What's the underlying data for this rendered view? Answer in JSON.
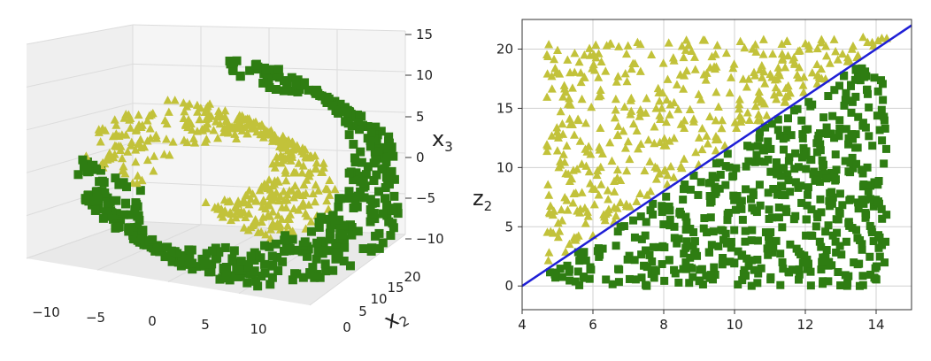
{
  "colors": {
    "class_0": "#2e7d12",
    "class_1": "#c2c23a",
    "boundary": "#1f1fd6",
    "grid": "#d0d0d0",
    "pane": "#efefef"
  },
  "chart_data": [
    {
      "type": "scatter",
      "projection": "3d",
      "markers": {
        "class_0": "square",
        "class_1": "triangle"
      },
      "axes": {
        "x": {
          "label": "",
          "ticks": [
            "−10",
            "−5",
            "0",
            "5",
            "10"
          ],
          "range": [
            -12,
            12
          ]
        },
        "y": {
          "label_base": "x",
          "label_sub": "2",
          "ticks": [
            "0",
            "5",
            "10",
            "15",
            "20"
          ],
          "range": [
            0,
            21
          ]
        },
        "z": {
          "label_base": "x",
          "label_sub": "3",
          "ticks": [
            "−10",
            "−5",
            "0",
            "5",
            "10",
            "15"
          ],
          "range": [
            -12,
            16
          ]
        }
      },
      "grid": true,
      "shape": "swiss-roll spiral",
      "series": [
        {
          "class": 0,
          "marker": "square",
          "color": "#2e7d12",
          "region": "outer turns of the roll"
        },
        {
          "class": 1,
          "marker": "triangle",
          "color": "#c2c23a",
          "region": "inner turns of the roll"
        }
      ]
    },
    {
      "type": "scatter",
      "xlim": [
        4,
        15
      ],
      "ylim": [
        -2,
        22.5
      ],
      "x_ticks": [
        "4",
        "6",
        "8",
        "10",
        "12",
        "14"
      ],
      "y_ticks": [
        "0",
        "5",
        "10",
        "15",
        "20"
      ],
      "xlabel": "",
      "ylabel_base": "z",
      "ylabel_sub": "2",
      "grid": true,
      "decision_boundary": {
        "x": [
          4,
          15
        ],
        "y": [
          0,
          22
        ]
      },
      "series": [
        {
          "class": 1,
          "marker": "triangle",
          "color": "#c2c23a",
          "x_range": [
            4.7,
            14.3
          ],
          "y_range": [
            2,
            21
          ],
          "position": "above line"
        },
        {
          "class": 0,
          "marker": "square",
          "color": "#2e7d12",
          "x_range": [
            4.7,
            14.3
          ],
          "y_range": [
            0,
            18.5
          ],
          "position": "below line"
        }
      ]
    }
  ]
}
